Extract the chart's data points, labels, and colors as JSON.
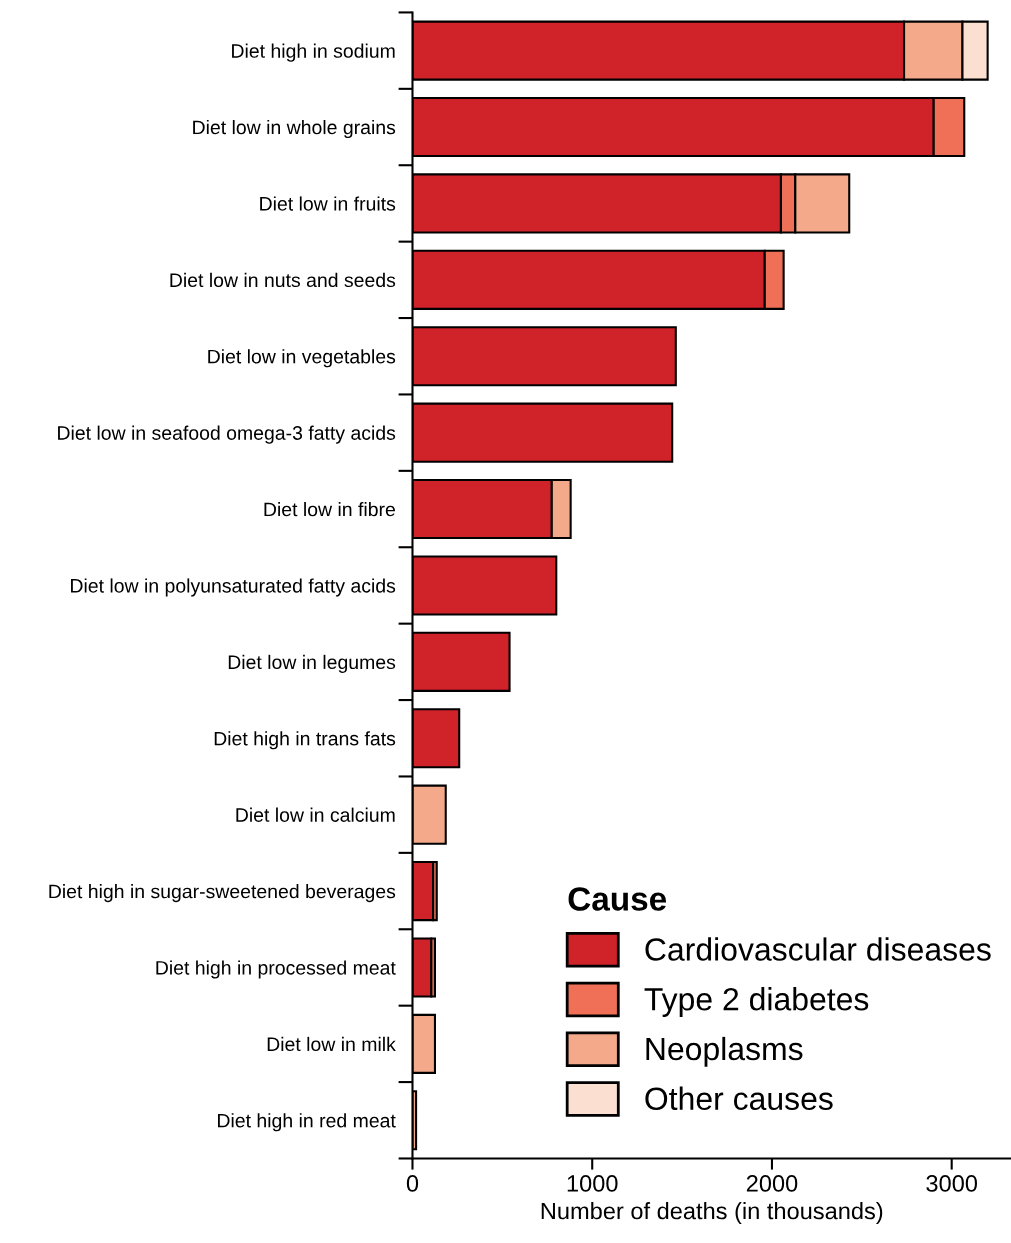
{
  "chart_data": {
    "type": "bar",
    "orientation": "horizontal",
    "stacked": true,
    "xlabel": "Number of deaths (in thousands)",
    "legend_title": "Cause",
    "legend": "bottom right",
    "grid": false,
    "categories": [
      "Diet high in sodium",
      "Diet low in whole grains",
      "Diet low in fruits",
      "Diet low in nuts and seeds",
      "Diet low in vegetables",
      "Diet low in seafood omega-3 fatty acids",
      "Diet low in fibre",
      "Diet low in polyunsaturated fatty acids",
      "Diet low in legumes",
      "Diet high in trans fats",
      "Diet low in calcium",
      "Diet high in sugar-sweetened beverages",
      "Diet high in processed meat",
      "Diet low in milk",
      "Diet high in red meat"
    ],
    "series": [
      {
        "name": "Cardiovascular diseases",
        "color": "#cf2229",
        "values": [
          2735,
          2900,
          2050,
          1960,
          1465,
          1445,
          775,
          800,
          540,
          260,
          null,
          115,
          105,
          null,
          null
        ]
      },
      {
        "name": "Type 2 diabetes",
        "color": "#f07057",
        "values": [
          null,
          170,
          80,
          105,
          null,
          null,
          null,
          null,
          null,
          null,
          null,
          20,
          20,
          null,
          null
        ]
      },
      {
        "name": "Neoplasms",
        "color": "#f5a98b",
        "values": [
          325,
          null,
          300,
          null,
          null,
          null,
          105,
          null,
          null,
          null,
          185,
          null,
          null,
          125,
          20
        ]
      },
      {
        "name": "Other causes",
        "color": "#fbe0d2",
        "values": [
          140,
          null,
          null,
          null,
          null,
          null,
          null,
          null,
          null,
          null,
          null,
          null,
          null,
          null,
          null
        ]
      }
    ],
    "xlim": [
      0,
      3330
    ],
    "xticks": [
      0,
      1000,
      2000,
      3000
    ]
  }
}
